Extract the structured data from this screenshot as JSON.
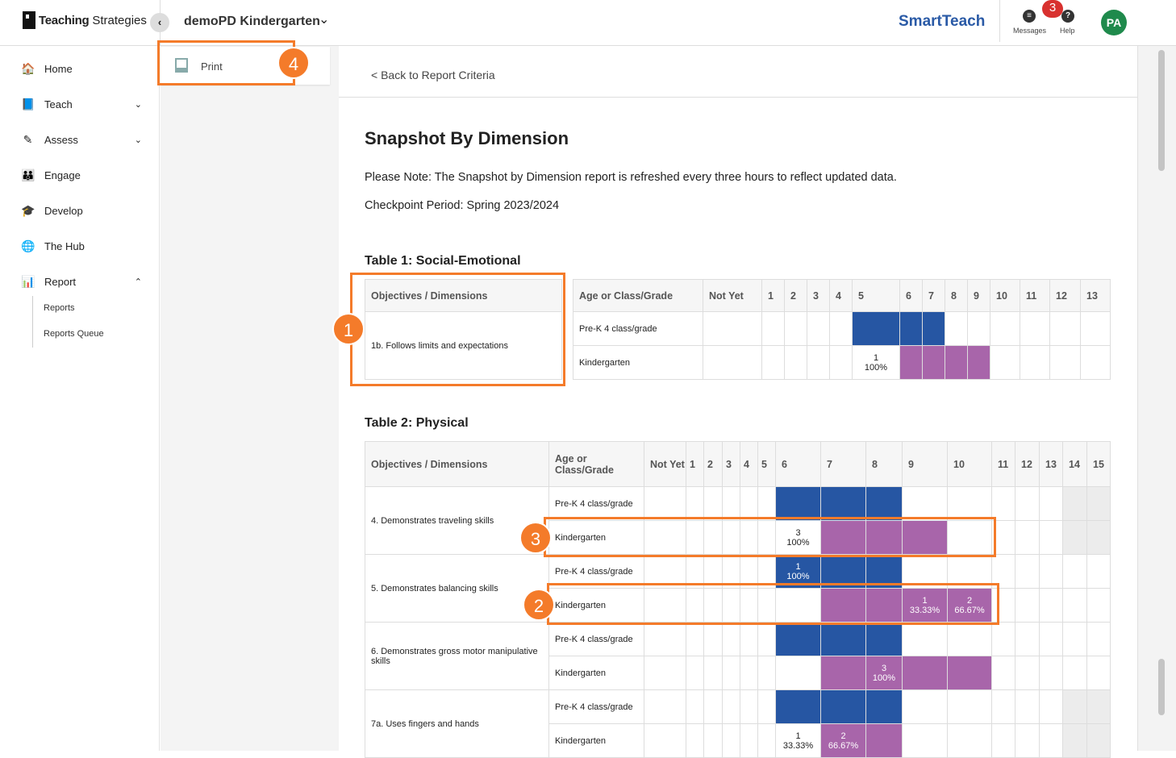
{
  "header": {
    "logo_bold": "Teaching",
    "logo_light": "Strategies",
    "org": "demoPD Kindergarten",
    "brand": "SmartTeach",
    "messages": "Messages",
    "help": "Help",
    "badge": "3",
    "avatar": "PA"
  },
  "sidebar": {
    "items": [
      {
        "label": "Home",
        "icon": "🏠"
      },
      {
        "label": "Teach",
        "icon": "📘",
        "chev": "⌄"
      },
      {
        "label": "Assess",
        "icon": "✎",
        "chev": "⌄"
      },
      {
        "label": "Engage",
        "icon": "👪"
      },
      {
        "label": "Develop",
        "icon": "🎓"
      },
      {
        "label": "The Hub",
        "icon": "🌐"
      },
      {
        "label": "Report",
        "icon": "📊",
        "chev": "⌃"
      }
    ],
    "sub": [
      "Reports",
      "Reports Queue"
    ]
  },
  "panel": {
    "print": "Print"
  },
  "main": {
    "back": "< Back to Report Criteria",
    "title": "Snapshot By Dimension",
    "note": "Please Note: The Snapshot by Dimension report is refreshed every three hours to reflect updated data.",
    "period": "Checkpoint Period: Spring 2023/2024"
  },
  "colors": {
    "blue": "#2656a3",
    "purple": "#a865aa",
    "annotation": "#f47b2a"
  },
  "annotations": [
    "1",
    "2",
    "3",
    "4"
  ],
  "table1": {
    "title": "Table 1: Social-Emotional",
    "headers": [
      "Objectives / Dimensions",
      "Age or Class/Grade",
      "Not Yet",
      "1",
      "2",
      "3",
      "4",
      "5",
      "6",
      "7",
      "8",
      "9",
      "10",
      "11",
      "12",
      "13"
    ],
    "rows": [
      {
        "objective": "1b. Follows limits and expectations",
        "groups": [
          {
            "group": "Pre-K 4 class/grade",
            "fills": {
              "5": "B",
              "6": "B",
              "7": "B"
            },
            "labels": {}
          },
          {
            "group": "Kindergarten",
            "fills": {
              "6": "P",
              "7": "P",
              "8": "P",
              "9": "P"
            },
            "labels": {
              "5": [
                "1",
                "100%"
              ]
            }
          }
        ]
      }
    ]
  },
  "table2": {
    "title": "Table 2: Physical",
    "headers": [
      "Objectives / Dimensions",
      "Age or Class/Grade",
      "Not Yet",
      "1",
      "2",
      "3",
      "4",
      "5",
      "6",
      "7",
      "8",
      "9",
      "10",
      "11",
      "12",
      "13",
      "14",
      "15"
    ],
    "rows": [
      {
        "objective": "4. Demonstrates traveling skills",
        "groups": [
          {
            "group": "Pre-K 4 class/grade",
            "fills": {
              "6": "B",
              "7": "B",
              "8": "B",
              "14": "G",
              "15": "G"
            },
            "labels": {}
          },
          {
            "group": "Kindergarten",
            "fills": {
              "7": "P",
              "8": "P",
              "9": "P",
              "14": "G",
              "15": "G"
            },
            "labels": {
              "6": [
                "3",
                "100%"
              ]
            }
          }
        ]
      },
      {
        "objective": "5. Demonstrates balancing skills",
        "groups": [
          {
            "group": "Pre-K 4 class/grade",
            "fills": {
              "6": "B",
              "7": "B",
              "8": "B"
            },
            "labels": {
              "6": [
                "1",
                "100%"
              ]
            }
          },
          {
            "group": "Kindergarten",
            "fills": {
              "7": "P",
              "8": "P",
              "9": "P",
              "10": "P"
            },
            "labels": {
              "9": [
                "1",
                "33.33%"
              ],
              "10": [
                "2",
                "66.67%"
              ]
            }
          }
        ]
      },
      {
        "objective": "6. Demonstrates gross motor manipulative skills",
        "groups": [
          {
            "group": "Pre-K 4 class/grade",
            "fills": {
              "6": "B",
              "7": "B",
              "8": "B"
            },
            "labels": {}
          },
          {
            "group": "Kindergarten",
            "fills": {
              "7": "P",
              "8": "P",
              "9": "P",
              "10": "P"
            },
            "labels": {
              "8": [
                "3",
                "100%"
              ]
            }
          }
        ]
      },
      {
        "objective": "7a. Uses fingers and hands",
        "groups": [
          {
            "group": "Pre-K 4 class/grade",
            "fills": {
              "6": "B",
              "7": "B",
              "8": "B",
              "14": "G",
              "15": "G"
            },
            "labels": {}
          },
          {
            "group": "Kindergarten",
            "fills": {
              "7": "P",
              "8": "P",
              "14": "G",
              "15": "G"
            },
            "labels": {
              "6": [
                "1",
                "33.33%"
              ],
              "7": [
                "2",
                "66.67%"
              ]
            }
          }
        ]
      }
    ]
  }
}
